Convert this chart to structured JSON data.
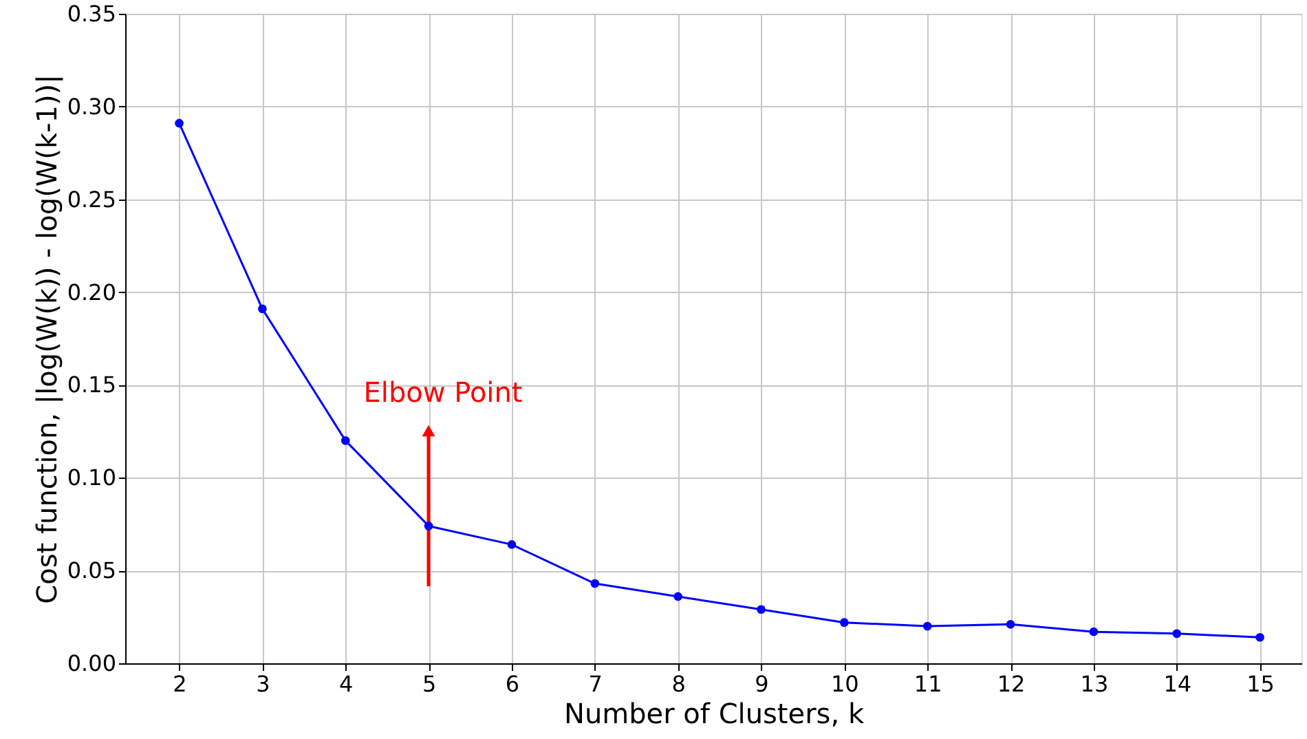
{
  "chart_data": {
    "type": "line",
    "xlabel": "Number of Clusters, k",
    "ylabel": "Cost function, |log(W(k)) - log(W(k-1))|",
    "x": [
      2,
      3,
      4,
      5,
      6,
      7,
      8,
      9,
      10,
      11,
      12,
      13,
      14,
      15
    ],
    "series": [
      {
        "color": "#0000ff",
        "values": [
          0.291,
          0.191,
          0.12,
          0.074,
          0.064,
          0.043,
          0.036,
          0.029,
          0.022,
          0.02,
          0.021,
          0.017,
          0.016,
          0.014
        ]
      }
    ],
    "xlim": [
      1.35,
      15.5
    ],
    "xticks": [
      2,
      3,
      4,
      5,
      6,
      7,
      8,
      9,
      10,
      11,
      12,
      13,
      14,
      15
    ],
    "ylim": [
      0,
      0.35
    ],
    "yticks": [
      {
        "value": 0,
        "label": "0.00"
      },
      {
        "value": 0.05,
        "label": "0.05"
      },
      {
        "value": 0.1,
        "label": "0.10"
      },
      {
        "value": 0.15,
        "label": "0.15"
      },
      {
        "value": 0.2,
        "label": "0.20"
      },
      {
        "value": 0.25,
        "label": "0.25"
      },
      {
        "value": 0.3,
        "label": "0.30"
      },
      {
        "value": 0.35,
        "label": "0.35"
      }
    ],
    "annotations": [
      "Elbow Point"
    ],
    "grid": true,
    "marker": "circle",
    "line_style": "solid"
  }
}
